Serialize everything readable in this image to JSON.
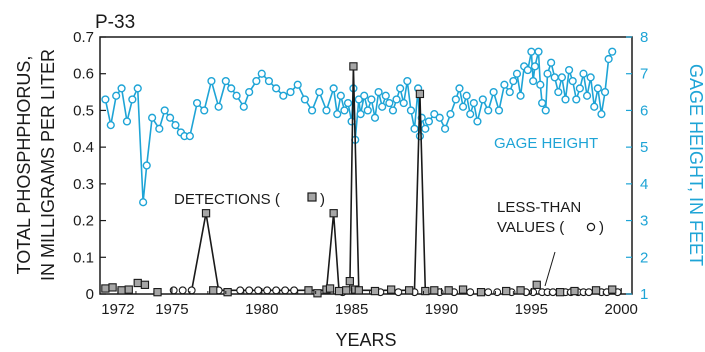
{
  "chart_data": {
    "type": "line",
    "panel_label": "P-33",
    "xlabel": "YEARS",
    "ylabel_left_line1": "TOTAL PHOSPHPHORUS,",
    "ylabel_left_line2": "IN MILLIGRAMS PER LITER",
    "ylabel_right": "GAGE HEIGHT, IN FEET",
    "xlim": [
      1971,
      2000.6
    ],
    "ylim_left": [
      0,
      0.7
    ],
    "ylim_right": [
      1,
      8
    ],
    "x_ticks": [
      1972,
      1975,
      1980,
      1985,
      1990,
      1995,
      2000
    ],
    "y_ticks_left": [
      0,
      0.1,
      0.2,
      0.3,
      0.4,
      0.5,
      0.6,
      0.7
    ],
    "y_ticks_left_labels": [
      "0",
      "0.1",
      "0.2",
      "0.3",
      "0.4",
      "0.5",
      "0.6",
      "0.7"
    ],
    "y_ticks_right": [
      1,
      2,
      3,
      4,
      5,
      6,
      7,
      8
    ],
    "annotations": {
      "gage": "GAGE HEIGHT",
      "detections": "DETECTIONS (",
      "detections_close": ")",
      "less_than_1": "LESS-THAN",
      "less_than_2": "VALUES (",
      "less_than_close": ")"
    },
    "colors": {
      "gage": "#1ea4d6",
      "phosphorus": "#1a1a1a",
      "marker_fill": "#a6a6a6"
    },
    "series": [
      {
        "name": "GAGE HEIGHT",
        "axis": "right",
        "x": [
          1971.3,
          1971.6,
          1971.9,
          1972.2,
          1972.5,
          1972.8,
          1973.1,
          1973.4,
          1973.6,
          1973.9,
          1974.3,
          1974.6,
          1974.9,
          1975.2,
          1975.5,
          1975.7,
          1976,
          1976.4,
          1976.8,
          1977.2,
          1977.6,
          1978,
          1978.3,
          1978.6,
          1979,
          1979.3,
          1979.7,
          1980,
          1980.4,
          1980.8,
          1981.2,
          1981.6,
          1982,
          1982.4,
          1982.8,
          1983.2,
          1983.6,
          1984,
          1984.2,
          1984.4,
          1984.6,
          1984.8,
          1985,
          1985.1,
          1985.2,
          1985.4,
          1985.5,
          1985.7,
          1985.9,
          1986.1,
          1986.3,
          1986.5,
          1986.7,
          1986.9,
          1987.1,
          1987.3,
          1987.5,
          1987.7,
          1987.9,
          1988.1,
          1988.3,
          1988.5,
          1988.7,
          1988.8,
          1988.9,
          1989.1,
          1989.3,
          1989.6,
          1989.9,
          1990.2,
          1990.5,
          1990.8,
          1991,
          1991.2,
          1991.4,
          1991.6,
          1991.8,
          1992,
          1992.3,
          1992.6,
          1992.9,
          1993.2,
          1993.5,
          1993.8,
          1994,
          1994.2,
          1994.4,
          1994.6,
          1994.8,
          1995,
          1995.1,
          1995.2,
          1995.4,
          1995.5,
          1995.6,
          1995.8,
          1995.9,
          1996.1,
          1996.3,
          1996.5,
          1996.7,
          1996.9,
          1997.1,
          1997.3,
          1997.5,
          1997.7,
          1997.9,
          1998.1,
          1998.3,
          1998.5,
          1998.7,
          1998.9,
          1999.1,
          1999.3,
          1999.5
        ],
        "values": [
          6.3,
          5.6,
          6.4,
          6.6,
          5.7,
          6.3,
          6.6,
          3.5,
          4.5,
          5.8,
          5.5,
          6.0,
          5.8,
          5.6,
          5.4,
          5.3,
          5.3,
          6.2,
          6.0,
          6.8,
          6.1,
          6.8,
          6.6,
          6.4,
          6.1,
          6.5,
          6.8,
          7.0,
          6.8,
          6.6,
          6.4,
          6.5,
          6.7,
          6.3,
          6.0,
          6.5,
          6.0,
          6.6,
          5.9,
          6.4,
          6.0,
          6.2,
          5.7,
          6.6,
          5.2,
          6.3,
          5.9,
          6.4,
          6.0,
          6.3,
          5.8,
          6.5,
          6.1,
          6.4,
          6.2,
          6.0,
          6.3,
          6.6,
          6.2,
          6.8,
          6.0,
          5.5,
          6.6,
          5.3,
          5.8,
          5.5,
          5.7,
          5.9,
          5.8,
          5.5,
          5.9,
          6.3,
          6.6,
          6.1,
          6.4,
          5.9,
          6.2,
          5.7,
          6.3,
          6.0,
          6.5,
          6.0,
          6.7,
          6.5,
          6.8,
          7.0,
          6.4,
          7.2,
          7.1,
          7.6,
          6.8,
          7.2,
          7.6,
          6.7,
          6.2,
          6.0,
          7.0,
          7.3,
          6.9,
          6.5,
          6.9,
          6.3,
          7.1,
          6.8,
          6.3,
          6.6,
          7.0,
          6.4,
          6.9,
          6.1,
          6.6,
          5.9,
          6.5,
          7.4,
          7.6
        ]
      },
      {
        "name": "DETECTIONS",
        "axis": "left",
        "x": [
          1971.3,
          1971.7,
          1972.2,
          1972.6,
          1973.1,
          1973.5,
          1974.2,
          1976.9,
          1977.3,
          1978.1,
          1982.6,
          1983.1,
          1983.6,
          1983.8,
          1984.0,
          1984.3,
          1984.7,
          1984.9,
          1985.1,
          1985.2,
          1985.4,
          1986.3,
          1987.2,
          1988.2,
          1988.8,
          1989.1,
          1989.6,
          1990.4,
          1991.2,
          1992.2,
          1993.6,
          1994.4,
          1995.3,
          1996.6,
          1997.4,
          1998.6,
          1999.5
        ],
        "values": [
          0.015,
          0.018,
          0.01,
          0.012,
          0.03,
          0.025,
          0.005,
          0.22,
          0.01,
          0.005,
          0.01,
          0.002,
          0.012,
          0.015,
          0.22,
          0.008,
          0.01,
          0.035,
          0.62,
          0.012,
          0.01,
          0.008,
          0.012,
          0.01,
          0.545,
          0.008,
          0.01,
          0.01,
          0.012,
          0.005,
          0.008,
          0.01,
          0.025,
          0.005,
          0.008,
          0.01,
          0.012
        ]
      },
      {
        "name": "LESS-THAN VALUES",
        "axis": "left",
        "x": [
          1975.1,
          1975.6,
          1976.1,
          1977.6,
          1978.8,
          1979.3,
          1979.8,
          1980.3,
          1980.8,
          1981.3,
          1981.8,
          1984.5,
          1986.6,
          1987.6,
          1988.5,
          1989.9,
          1990.7,
          1991.6,
          1992.6,
          1993.1,
          1993.9,
          1994.7,
          1995.1,
          1995.6,
          1995.9,
          1996.2,
          1996.9,
          1997.2,
          1997.6,
          1997.9,
          1998.2,
          1998.9,
          1999.2,
          1999.8
        ],
        "values": [
          0.01,
          0.01,
          0.01,
          0.01,
          0.01,
          0.01,
          0.01,
          0.01,
          0.01,
          0.01,
          0.01,
          0.005,
          0.005,
          0.005,
          0.005,
          0.005,
          0.005,
          0.005,
          0.005,
          0.005,
          0.005,
          0.005,
          0.005,
          0.005,
          0.005,
          0.005,
          0.005,
          0.005,
          0.005,
          0.005,
          0.005,
          0.005,
          0.005,
          0.005
        ]
      }
    ],
    "phosphorus_line": {
      "x": [
        1976.1,
        1976.9,
        1977.6,
        1983.6,
        1984.0,
        1984.3,
        1984.9,
        1985.1,
        1985.4,
        1988.5,
        1988.8,
        1989.1
      ],
      "values": [
        0.01,
        0.22,
        0.01,
        0.01,
        0.22,
        0.01,
        0.01,
        0.62,
        0.01,
        0.01,
        0.545,
        0.01
      ]
    }
  }
}
